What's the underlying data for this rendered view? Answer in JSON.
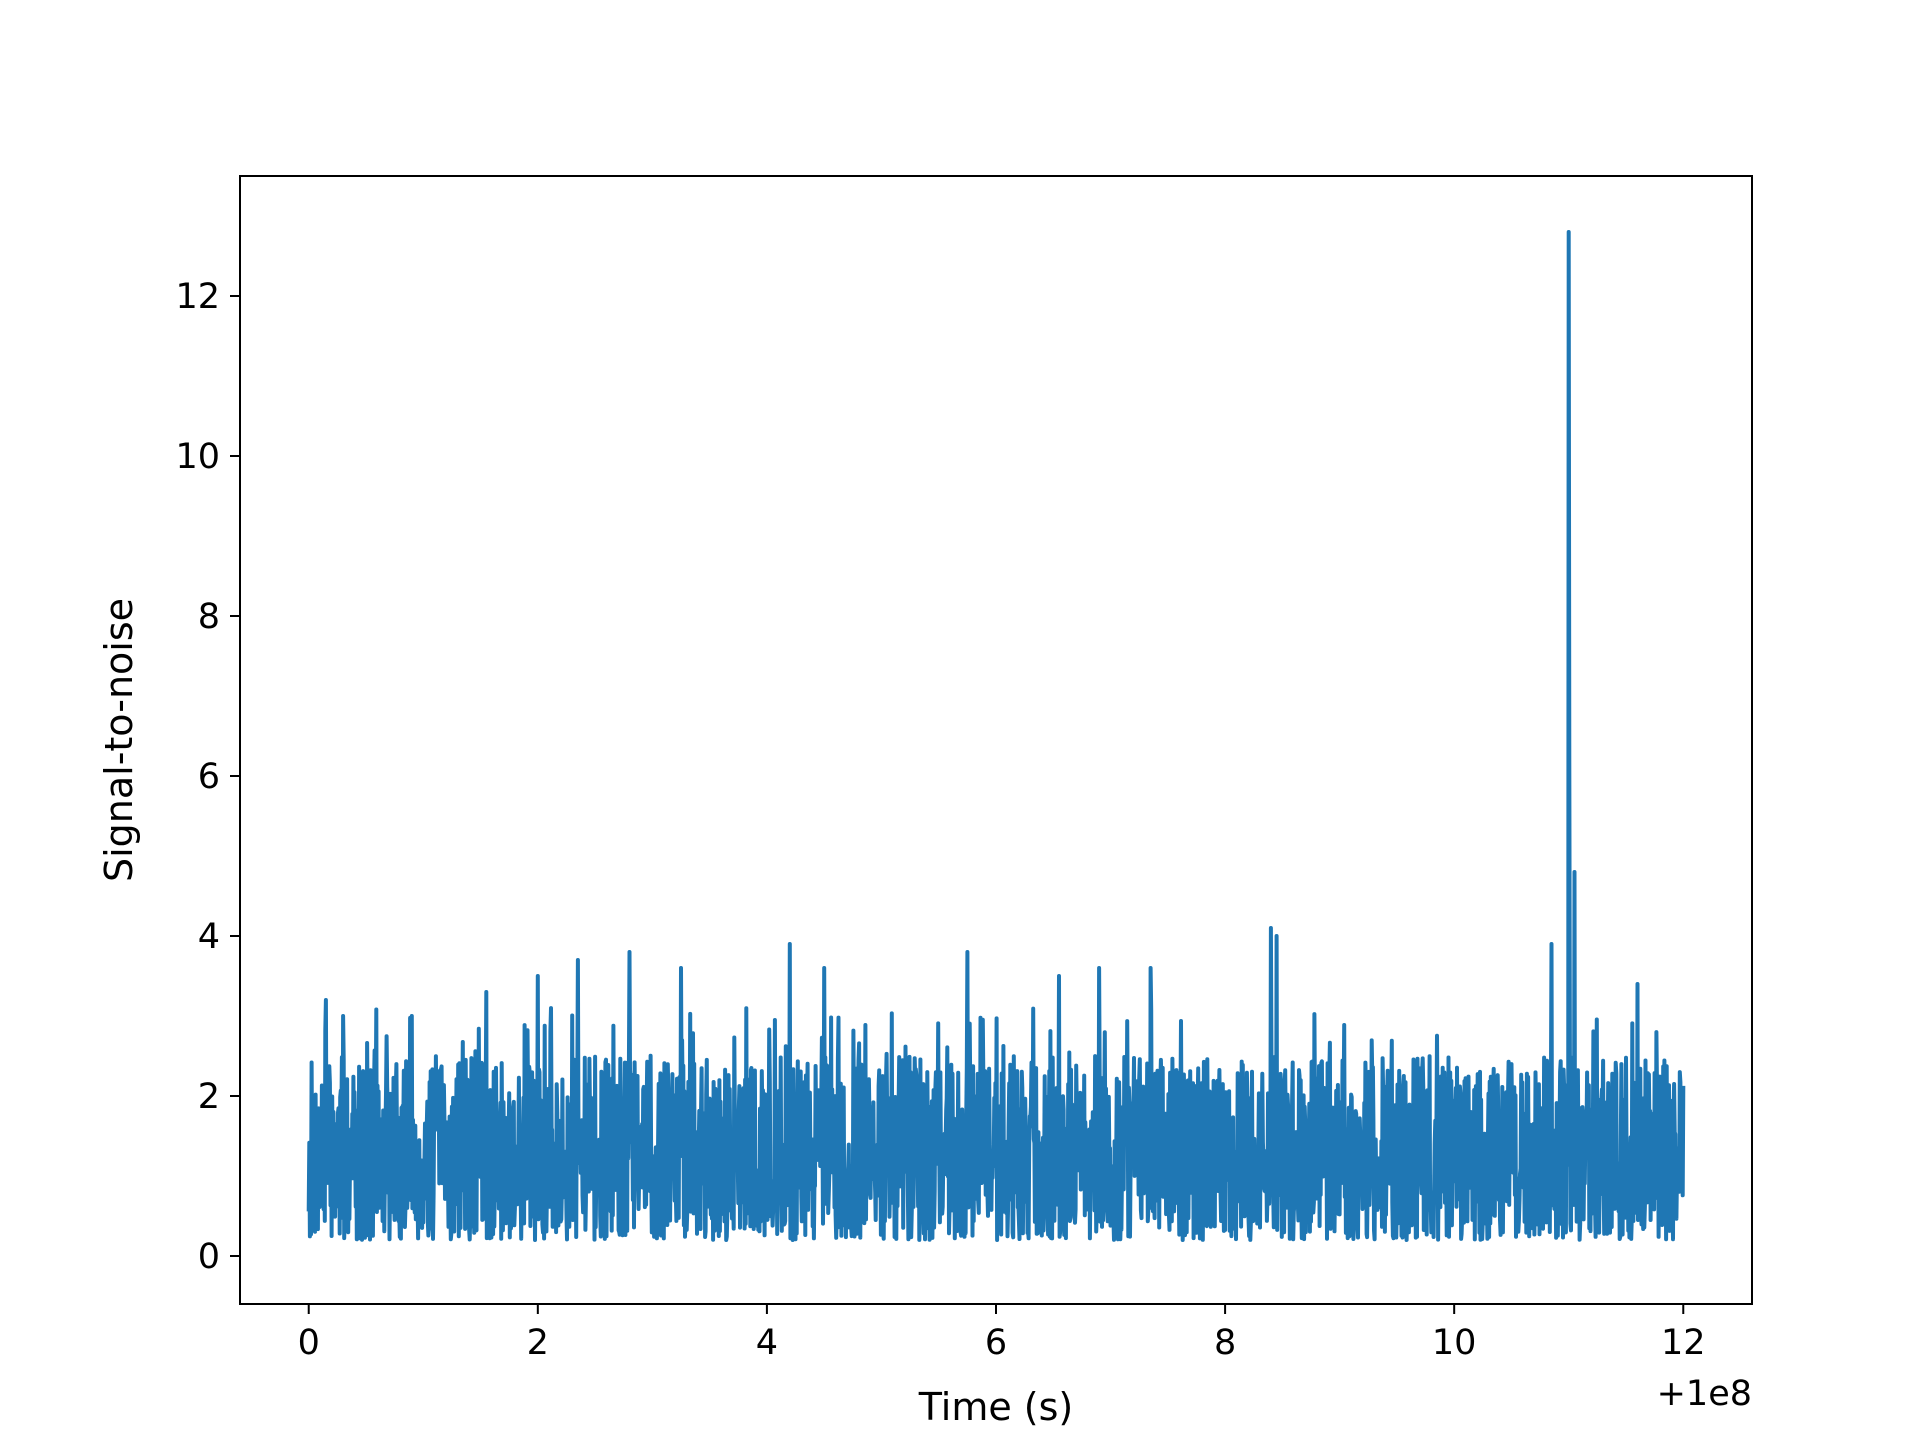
{
  "chart_data": {
    "type": "line",
    "title": "",
    "xlabel": "Time (s)",
    "ylabel": "Signal-to-noise",
    "x_offset_label": "+1e8",
    "xlim": [
      -0.6,
      12.6
    ],
    "ylim": [
      -0.6,
      13.5
    ],
    "xticks": [
      {
        "value": 0,
        "label": "0"
      },
      {
        "value": 2,
        "label": "2"
      },
      {
        "value": 4,
        "label": "4"
      },
      {
        "value": 6,
        "label": "6"
      },
      {
        "value": 8,
        "label": "8"
      },
      {
        "value": 10,
        "label": "10"
      },
      {
        "value": 12,
        "label": "12"
      }
    ],
    "yticks": [
      {
        "value": 0,
        "label": "0"
      },
      {
        "value": 2,
        "label": "2"
      },
      {
        "value": 4,
        "label": "4"
      },
      {
        "value": 6,
        "label": "6"
      },
      {
        "value": 8,
        "label": "8"
      },
      {
        "value": 10,
        "label": "10"
      },
      {
        "value": 12,
        "label": "12"
      }
    ],
    "grid": false,
    "legend": "none",
    "series": [
      {
        "color": "#1f77b4",
        "x_range": [
          0,
          12
        ],
        "baseline_range": [
          0.1,
          3.0
        ],
        "peaks": [
          {
            "x": 0.15,
            "y": 3.2
          },
          {
            "x": 0.3,
            "y": 3.0
          },
          {
            "x": 0.9,
            "y": 3.0
          },
          {
            "x": 1.55,
            "y": 3.3
          },
          {
            "x": 2.0,
            "y": 3.5
          },
          {
            "x": 2.35,
            "y": 3.7
          },
          {
            "x": 2.8,
            "y": 3.8
          },
          {
            "x": 3.25,
            "y": 3.6
          },
          {
            "x": 4.2,
            "y": 3.9
          },
          {
            "x": 4.5,
            "y": 3.6
          },
          {
            "x": 5.75,
            "y": 3.8
          },
          {
            "x": 6.55,
            "y": 3.5
          },
          {
            "x": 6.9,
            "y": 3.6
          },
          {
            "x": 7.35,
            "y": 3.6
          },
          {
            "x": 8.4,
            "y": 4.1
          },
          {
            "x": 8.45,
            "y": 4.0
          },
          {
            "x": 10.85,
            "y": 3.9
          },
          {
            "x": 11.0,
            "y": 12.8
          },
          {
            "x": 11.05,
            "y": 4.8
          },
          {
            "x": 11.6,
            "y": 3.4
          }
        ]
      }
    ]
  }
}
